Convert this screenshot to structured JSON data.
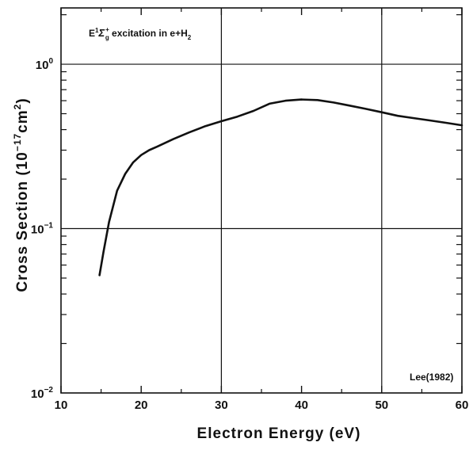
{
  "chart_data": {
    "type": "line",
    "title": "",
    "annotation": {
      "prefix": "E",
      "sup1": "1",
      "sigma": "Σ",
      "sup2": "+",
      "sub1": "g",
      "mid": " excitation in e+H",
      "sub2": "2"
    },
    "source_label": "Lee(1982)",
    "xlabel": "Electron Energy (eV)",
    "ylabel": {
      "base": "Cross Section (10",
      "exp": "−17",
      "unit": "cm",
      "unit_exp": "2",
      "close": ")"
    },
    "xlim": [
      10,
      60
    ],
    "ylim": [
      0.01,
      2.2
    ],
    "yscale": "log",
    "x_ticks": [
      "10",
      "20",
      "30",
      "40",
      "50",
      "60"
    ],
    "y_ticks": [
      {
        "base": "10",
        "exp": "0",
        "value": 1
      },
      {
        "base": "10",
        "exp": "−1",
        "value": 0.1
      },
      {
        "base": "10",
        "exp": "−2",
        "value": 0.01
      }
    ],
    "grid": true,
    "series": [
      {
        "x": [
          14.8,
          15.3,
          16.0,
          17.0,
          18.0,
          19.0,
          20.0,
          21.0,
          22.0,
          24.0,
          26.0,
          28.0,
          30.0,
          32.0,
          34.0,
          36.0,
          38.0,
          40.0,
          42.0,
          44.0,
          46.0,
          48.0,
          50.0,
          52.0,
          54.0,
          56.0,
          58.0,
          60.0
        ],
        "y": [
          0.052,
          0.072,
          0.11,
          0.17,
          0.215,
          0.253,
          0.28,
          0.3,
          0.315,
          0.35,
          0.385,
          0.42,
          0.45,
          0.48,
          0.52,
          0.575,
          0.6,
          0.61,
          0.605,
          0.585,
          0.56,
          0.535,
          0.51,
          0.485,
          0.47,
          0.455,
          0.44,
          0.425
        ]
      }
    ]
  }
}
